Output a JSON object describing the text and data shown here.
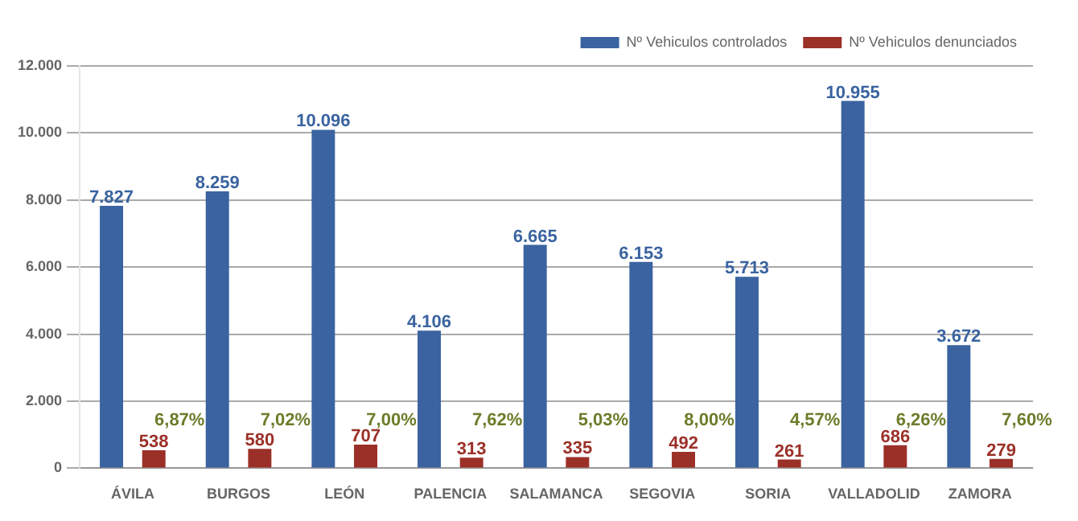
{
  "chart_data": {
    "type": "bar",
    "categories": [
      "ÁVILA",
      "BURGOS",
      "LEÓN",
      "PALENCIA",
      "SALAMANCA",
      "SEGOVIA",
      "SORIA",
      "VALLADOLID",
      "ZAMORA"
    ],
    "series": [
      {
        "name": "Nº Vehiculos controlados",
        "color": "#3a63a0",
        "values": [
          7827,
          8259,
          10096,
          4106,
          6665,
          6153,
          5713,
          10955,
          3672
        ],
        "value_labels": [
          "7.827",
          "8.259",
          "10.096",
          "4.106",
          "6.665",
          "6.153",
          "5.713",
          "10.955",
          "3.672"
        ]
      },
      {
        "name": "Nº Vehiculos denunciados",
        "color": "#9b3028",
        "values": [
          538,
          580,
          707,
          313,
          335,
          492,
          261,
          686,
          279
        ],
        "value_labels": [
          "538",
          "580",
          "707",
          "313",
          "335",
          "492",
          "261",
          "686",
          "279"
        ]
      }
    ],
    "ylim": [
      0,
      12000
    ],
    "yticks": [
      {
        "value": 0,
        "label": "0"
      },
      {
        "value": 2000,
        "label": "2.000"
      },
      {
        "value": 4000,
        "label": "4.000"
      },
      {
        "value": 6000,
        "label": "6.000"
      },
      {
        "value": 8000,
        "label": "8.000"
      },
      {
        "value": 10000,
        "label": "10.000"
      },
      {
        "value": 12000,
        "label": "12.000"
      }
    ],
    "grid": "y",
    "legend": "top right",
    "annotations": [
      "6,87%",
      "7,02%",
      "7,00%",
      "7,62%",
      "5,03%",
      "8,00%",
      "4,57%",
      "6,26%",
      "7,60%"
    ]
  }
}
